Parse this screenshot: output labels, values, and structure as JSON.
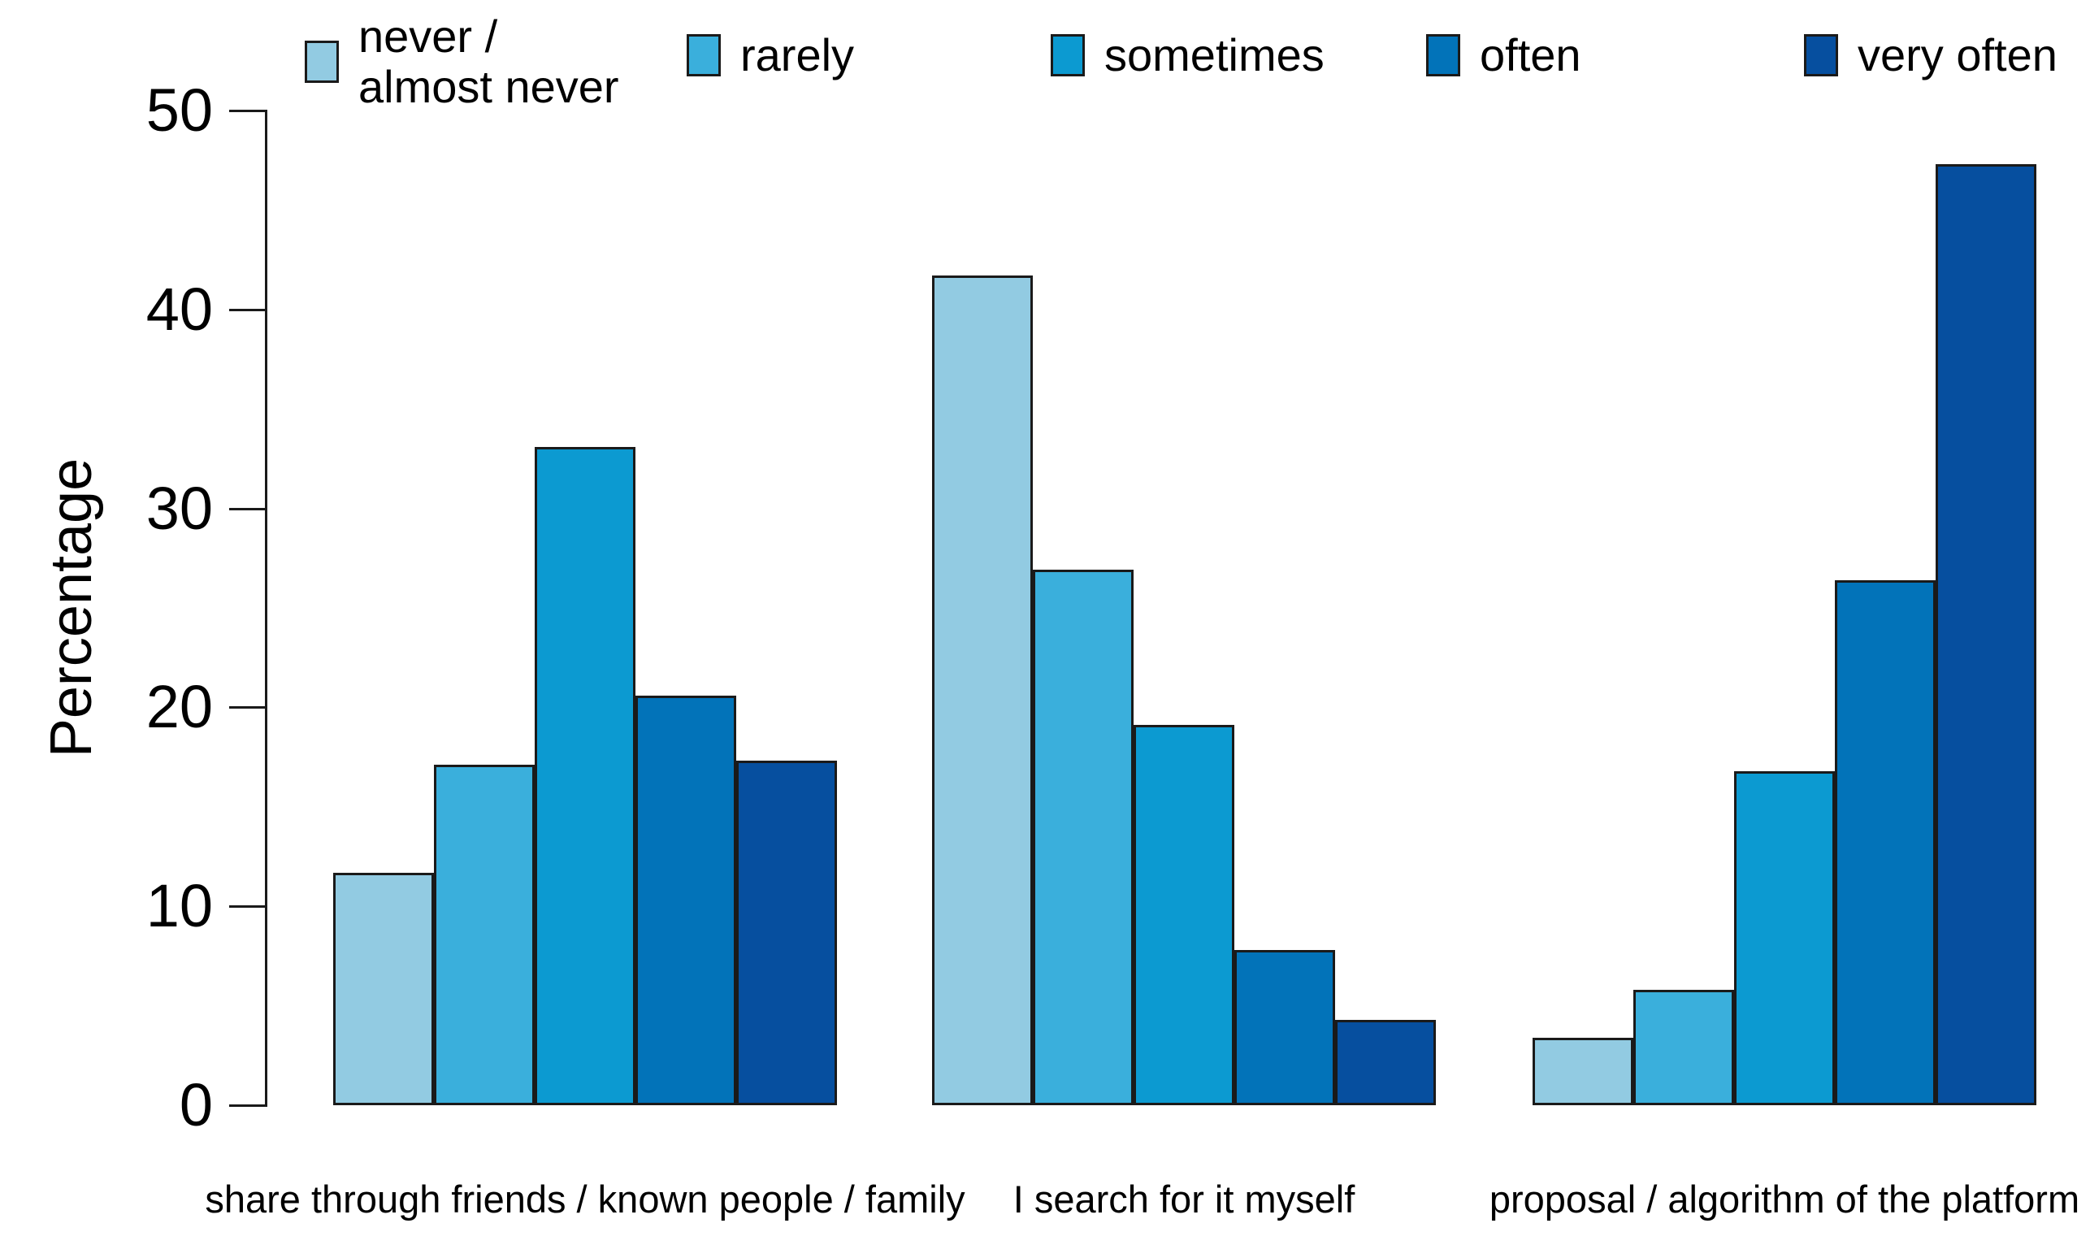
{
  "chart_data": {
    "type": "bar",
    "title": "",
    "xlabel": "",
    "ylabel": "Percentage",
    "ylim": [
      0,
      50
    ],
    "yticks": [
      0,
      10,
      20,
      30,
      40,
      50
    ],
    "grid": false,
    "legend_position": "top",
    "categories": [
      "share through friends / known people / family",
      "I search for it myself",
      "proposal / algorithm of the platform"
    ],
    "series": [
      {
        "name": "never / almost never",
        "label_lines": [
          "never /",
          "almost never"
        ],
        "color": "#92cbe2",
        "values": [
          11.7,
          41.7,
          3.4
        ]
      },
      {
        "name": "rarely",
        "label_lines": [
          "rarely"
        ],
        "color": "#3aafdc",
        "values": [
          17.1,
          26.9,
          5.8
        ]
      },
      {
        "name": "sometimes",
        "label_lines": [
          "sometimes"
        ],
        "color": "#0c9ad1",
        "values": [
          33.1,
          19.1,
          16.8
        ]
      },
      {
        "name": "often",
        "label_lines": [
          "often"
        ],
        "color": "#0273b9",
        "values": [
          20.6,
          7.8,
          26.4
        ]
      },
      {
        "name": "very often",
        "label_lines": [
          "very often"
        ],
        "color": "#064f9f",
        "values": [
          17.3,
          4.3,
          47.3
        ]
      }
    ],
    "colors": {
      "bar_border": "#1a1a1a",
      "axis": "#1a1a1a",
      "background": "#ffffff",
      "text": "#000000"
    }
  }
}
